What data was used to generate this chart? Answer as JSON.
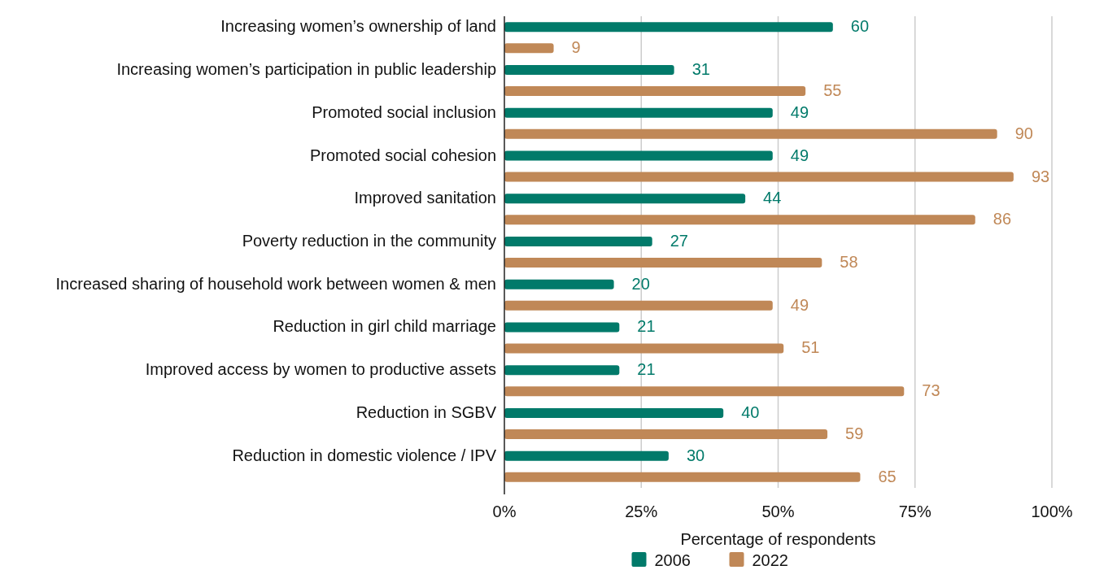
{
  "chart_data": {
    "type": "bar",
    "orientation": "horizontal",
    "xlabel": "Percentage of respondents",
    "categories": [
      "Increasing women’s ownership of land",
      "Increasing women’s participation in public leadership",
      "Promoted social inclusion",
      "Promoted social cohesion",
      "Improved sanitation",
      "Poverty reduction in the community",
      "Increased sharing of household work between women & men",
      "Reduction in girl child marriage",
      "Improved access by women to productive assets",
      "Reduction in SGBV",
      "Reduction in domestic violence / IPV"
    ],
    "series": [
      {
        "name": "2006",
        "color": "#017a6a",
        "values": [
          60,
          31,
          49,
          49,
          44,
          27,
          20,
          21,
          21,
          40,
          30
        ]
      },
      {
        "name": "2022",
        "color": "#c08857",
        "values": [
          9,
          55,
          90,
          93,
          86,
          58,
          49,
          51,
          73,
          59,
          65
        ]
      }
    ],
    "xlim": [
      0,
      100
    ],
    "xticks": [
      {
        "value": 0,
        "label": "0%"
      },
      {
        "value": 25,
        "label": "25%"
      },
      {
        "value": 50,
        "label": "50%"
      },
      {
        "value": 75,
        "label": "75%"
      },
      {
        "value": 100,
        "label": "100%"
      }
    ],
    "grid": "x",
    "legend": "bottom",
    "data_labels": true
  }
}
